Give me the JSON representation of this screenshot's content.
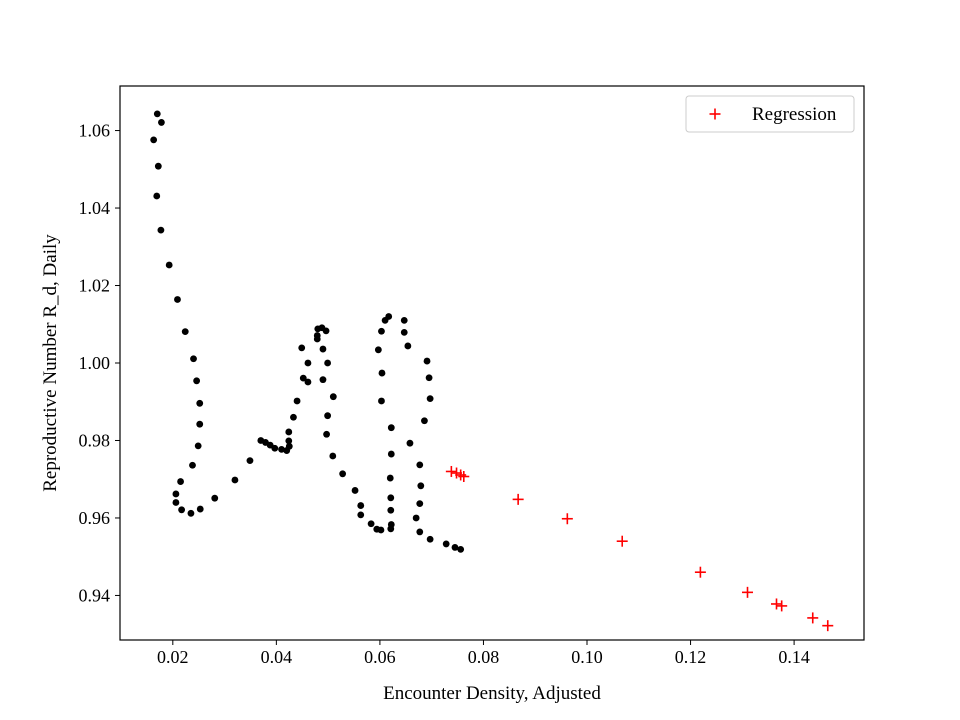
{
  "chart_data": {
    "type": "scatter",
    "title": "",
    "xlabel": "Encounter Density, Adjusted",
    "ylabel": "Reproductive Number R_d, Daily",
    "xlim": [
      0.0098,
      0.1535
    ],
    "ylim": [
      0.9285,
      1.0715
    ],
    "xticks": [
      0.02,
      0.04,
      0.06,
      0.08,
      0.1,
      0.12,
      0.14
    ],
    "xtick_labels": [
      "0.02",
      "0.04",
      "0.06",
      "0.08",
      "0.10",
      "0.12",
      "0.14"
    ],
    "yticks": [
      0.94,
      0.96,
      0.98,
      1.0,
      1.02,
      1.04,
      1.06
    ],
    "ytick_labels": [
      "0.94",
      "0.96",
      "0.98",
      "1.00",
      "1.02",
      "1.04",
      "1.06"
    ],
    "grid": false,
    "legend_position": "upper right",
    "series": [
      {
        "name": "",
        "marker": "dot",
        "color": "#000000",
        "points": [
          [
            0.017,
            1.0643
          ],
          [
            0.0178,
            1.0621
          ],
          [
            0.0163,
            1.0576
          ],
          [
            0.0172,
            1.0508
          ],
          [
            0.0169,
            1.0431
          ],
          [
            0.0177,
            1.0343
          ],
          [
            0.0193,
            1.0253
          ],
          [
            0.0209,
            1.0164
          ],
          [
            0.0224,
            1.0081
          ],
          [
            0.024,
            1.0011
          ],
          [
            0.0246,
            0.9954
          ],
          [
            0.0252,
            0.9896
          ],
          [
            0.0252,
            0.9842
          ],
          [
            0.0249,
            0.9786
          ],
          [
            0.0238,
            0.9736
          ],
          [
            0.0215,
            0.9694
          ],
          [
            0.0206,
            0.9662
          ],
          [
            0.0206,
            0.964
          ],
          [
            0.0217,
            0.9621
          ],
          [
            0.0235,
            0.9612
          ],
          [
            0.0253,
            0.9623
          ],
          [
            0.0281,
            0.9651
          ],
          [
            0.032,
            0.9698
          ],
          [
            0.0349,
            0.9748
          ],
          [
            0.037,
            0.98
          ],
          [
            0.0379,
            0.9795
          ],
          [
            0.0388,
            0.9788
          ],
          [
            0.0397,
            0.978
          ],
          [
            0.041,
            0.9777
          ],
          [
            0.042,
            0.9774
          ],
          [
            0.0425,
            0.9785
          ],
          [
            0.0424,
            0.9799
          ],
          [
            0.0424,
            0.9822
          ],
          [
            0.0433,
            0.986
          ],
          [
            0.044,
            0.9902
          ],
          [
            0.0452,
            0.9961
          ],
          [
            0.0449,
            1.0039
          ],
          [
            0.0461,
            1.0
          ],
          [
            0.0461,
            0.9951
          ],
          [
            0.0479,
            1.0062
          ],
          [
            0.0479,
            1.0071
          ],
          [
            0.048,
            1.0088
          ],
          [
            0.0488,
            1.0091
          ],
          [
            0.0496,
            1.0083
          ],
          [
            0.049,
            1.0036
          ],
          [
            0.0499,
            1.0
          ],
          [
            0.051,
            0.9913
          ],
          [
            0.0499,
            0.9864
          ],
          [
            0.049,
            0.9957
          ],
          [
            0.0497,
            0.9816
          ],
          [
            0.0509,
            0.976
          ],
          [
            0.0528,
            0.9714
          ],
          [
            0.0552,
            0.9671
          ],
          [
            0.0563,
            0.9632
          ],
          [
            0.0563,
            0.9608
          ],
          [
            0.0583,
            0.9585
          ],
          [
            0.0594,
            0.9571
          ],
          [
            0.0602,
            0.9569
          ],
          [
            0.0621,
            0.9572
          ],
          [
            0.0622,
            0.9583
          ],
          [
            0.0621,
            0.962
          ],
          [
            0.0621,
            0.9652
          ],
          [
            0.062,
            0.9703
          ],
          [
            0.0622,
            0.9765
          ],
          [
            0.0622,
            0.9833
          ],
          [
            0.0603,
            0.9902
          ],
          [
            0.0604,
            0.9974
          ],
          [
            0.0597,
            1.0034
          ],
          [
            0.0603,
            1.0082
          ],
          [
            0.061,
            1.011
          ],
          [
            0.0617,
            1.012
          ],
          [
            0.0647,
            1.011
          ],
          [
            0.0647,
            1.0079
          ],
          [
            0.0654,
            1.0044
          ],
          [
            0.0658,
            0.9793
          ],
          [
            0.067,
            0.96
          ],
          [
            0.0677,
            0.9564
          ],
          [
            0.0677,
            0.9637
          ],
          [
            0.0679,
            0.9683
          ],
          [
            0.0677,
            0.9737
          ],
          [
            0.0686,
            0.9851
          ],
          [
            0.0691,
            1.0005
          ],
          [
            0.0695,
            0.9962
          ],
          [
            0.0697,
            0.9908
          ],
          [
            0.0697,
            0.9545
          ],
          [
            0.0728,
            0.9533
          ],
          [
            0.0745,
            0.9524
          ],
          [
            0.0756,
            0.9519
          ]
        ]
      },
      {
        "name": "Regression",
        "marker": "plus",
        "color": "#ff0000",
        "points": [
          [
            0.0738,
            0.972
          ],
          [
            0.0748,
            0.9716
          ],
          [
            0.0756,
            0.9711
          ],
          [
            0.0762,
            0.9707
          ],
          [
            0.0867,
            0.9648
          ],
          [
            0.0962,
            0.9598
          ],
          [
            0.1068,
            0.954
          ],
          [
            0.1219,
            0.946
          ],
          [
            0.131,
            0.9408
          ],
          [
            0.1366,
            0.9378
          ],
          [
            0.1376,
            0.9373
          ],
          [
            0.1436,
            0.9342
          ],
          [
            0.1465,
            0.9322
          ]
        ]
      }
    ]
  }
}
